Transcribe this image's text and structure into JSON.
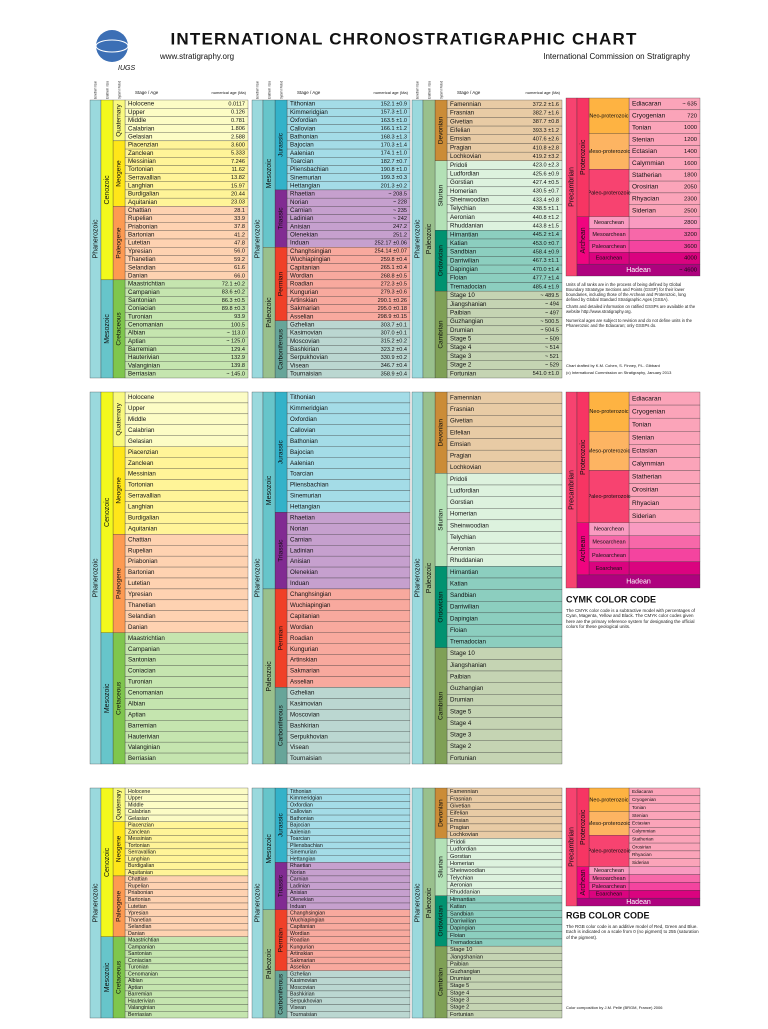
{
  "header": {
    "title": "INTERNATIONAL CHRONOSTRATIGRAPHIC CHART",
    "url": "www.stratigraphy.org",
    "org": "International Commission on Stratigraphy",
    "logo": "IUGS"
  },
  "columns": {
    "eon": "Eonothem / Eon",
    "era": "Erathem / Era",
    "period": "System / Period",
    "stage": "Stage / Age",
    "age": "numerical age (Ma)"
  },
  "panels": [
    {
      "eon": "Phanerozoic",
      "eon_color": "#9AD9DD",
      "eras": [
        {
          "name": "Cenozoic",
          "color": "#F2F91D",
          "periods": [
            {
              "name": "Quaternary",
              "color": "#F9F97F",
              "stages": [
                {
                  "name": "Holocene",
                  "age": "0.0117"
                },
                {
                  "name": "Upper",
                  "age": "0.126"
                },
                {
                  "name": "Middle",
                  "age": "0.781"
                },
                {
                  "name": "Calabrian",
                  "age": "1.806"
                },
                {
                  "name": "Gelasian",
                  "age": "2.588"
                }
              ]
            },
            {
              "name": "Neogene",
              "color": "#FFE619",
              "stages": [
                {
                  "name": "Piacenzian",
                  "age": "3.600"
                },
                {
                  "name": "Zanclean",
                  "age": "5.333"
                },
                {
                  "name": "Messinian",
                  "age": "7.246"
                },
                {
                  "name": "Tortonian",
                  "age": "11.62"
                },
                {
                  "name": "Serravallian",
                  "age": "13.82"
                },
                {
                  "name": "Langhian",
                  "age": "15.97"
                },
                {
                  "name": "Burdigalian",
                  "age": "20.44"
                },
                {
                  "name": "Aquitanian",
                  "age": "23.03"
                }
              ]
            },
            {
              "name": "Paleogene",
              "color": "#FD9A52",
              "stages": [
                {
                  "name": "Chattian",
                  "age": "28.1"
                },
                {
                  "name": "Rupelian",
                  "age": "33.9"
                },
                {
                  "name": "Priabonian",
                  "age": "37.8"
                },
                {
                  "name": "Bartonian",
                  "age": "41.2"
                },
                {
                  "name": "Lutetian",
                  "age": "47.8"
                },
                {
                  "name": "Ypresian",
                  "age": "56.0"
                },
                {
                  "name": "Thanetian",
                  "age": "59.2"
                },
                {
                  "name": "Selandian",
                  "age": "61.6"
                },
                {
                  "name": "Danian",
                  "age": "66.0"
                }
              ]
            }
          ]
        },
        {
          "name": "Mesozoic",
          "color": "#67C5CA",
          "periods": [
            {
              "name": "Cretaceous",
              "color": "#7FC64E",
              "stages": [
                {
                  "name": "Maastrichtian",
                  "age": "72.1 ±0.2"
                },
                {
                  "name": "Campanian",
                  "age": "83.6 ±0.2"
                },
                {
                  "name": "Santonian",
                  "age": "86.3 ±0.5"
                },
                {
                  "name": "Coniacian",
                  "age": "89.8 ±0.3"
                },
                {
                  "name": "Turonian",
                  "age": "93.9"
                },
                {
                  "name": "Cenomanian",
                  "age": "100.5"
                },
                {
                  "name": "Albian",
                  "age": "~ 113.0"
                },
                {
                  "name": "Aptian",
                  "age": "~ 125.0"
                },
                {
                  "name": "Barremian",
                  "age": "129.4"
                },
                {
                  "name": "Hauterivian",
                  "age": "132.9"
                },
                {
                  "name": "Valanginian",
                  "age": "139.8"
                },
                {
                  "name": "Berriasian",
                  "age": "~ 145.0"
                }
              ]
            }
          ]
        }
      ]
    },
    {
      "eon": "Phanerozoic",
      "eon_color": "#9AD9DD",
      "eras": [
        {
          "name": "Mesozoic",
          "color": "#67C5CA",
          "periods": [
            {
              "name": "Jurassic",
              "color": "#34B2C9",
              "stages": [
                {
                  "name": "Tithonian",
                  "age": "152.1 ±0.9"
                },
                {
                  "name": "Kimmeridgian",
                  "age": "157.3 ±1.0"
                },
                {
                  "name": "Oxfordian",
                  "age": "163.5 ±1.0"
                },
                {
                  "name": "Callovian",
                  "age": "166.1 ±1.2"
                },
                {
                  "name": "Bathonian",
                  "age": "168.3 ±1.3"
                },
                {
                  "name": "Bajocian",
                  "age": "170.3 ±1.4"
                },
                {
                  "name": "Aalenian",
                  "age": "174.1 ±1.0"
                },
                {
                  "name": "Toarcian",
                  "age": "182.7 ±0.7"
                },
                {
                  "name": "Pliensbachian",
                  "age": "190.8 ±1.0"
                },
                {
                  "name": "Sinemurian",
                  "age": "199.3 ±0.3"
                },
                {
                  "name": "Hettangian",
                  "age": "201.3 ±0.2"
                }
              ]
            },
            {
              "name": "Triassic",
              "color": "#812B92",
              "stages": [
                {
                  "name": "Rhaetian",
                  "age": "~ 208.5"
                },
                {
                  "name": "Norian",
                  "age": "~ 228"
                },
                {
                  "name": "Carnian",
                  "age": "~ 235"
                },
                {
                  "name": "Ladinian",
                  "age": "~ 242"
                },
                {
                  "name": "Anisian",
                  "age": "247.2"
                },
                {
                  "name": "Olenekian",
                  "age": "251.2"
                },
                {
                  "name": "Induan",
                  "age": "252.17 ±0.06"
                }
              ]
            }
          ]
        },
        {
          "name": "Paleozoic",
          "color": "#99C08D",
          "periods": [
            {
              "name": "Permian",
              "color": "#F04028",
              "stages": [
                {
                  "name": "Changhsingian",
                  "age": "254.14 ±0.07"
                },
                {
                  "name": "Wuchiapingian",
                  "age": "259.8 ±0.4"
                },
                {
                  "name": "Capitanian",
                  "age": "265.1 ±0.4"
                },
                {
                  "name": "Wordian",
                  "age": "268.8 ±0.5"
                },
                {
                  "name": "Roadian",
                  "age": "272.3 ±0.5"
                },
                {
                  "name": "Kungurian",
                  "age": "279.3 ±0.6"
                },
                {
                  "name": "Artinskian",
                  "age": "290.1 ±0.26"
                },
                {
                  "name": "Sakmarian",
                  "age": "295.0 ±0.18"
                },
                {
                  "name": "Asselian",
                  "age": "298.9 ±0.15"
                }
              ]
            },
            {
              "name": "Carboniferous",
              "color": "#67A599",
              "stages": [
                {
                  "name": "Gzhelian",
                  "age": "303.7 ±0.1"
                },
                {
                  "name": "Kasimovian",
                  "age": "307.0 ±0.1"
                },
                {
                  "name": "Moscovian",
                  "age": "315.2 ±0.2"
                },
                {
                  "name": "Bashkirian",
                  "age": "323.2 ±0.4"
                },
                {
                  "name": "Serpukhovian",
                  "age": "330.9 ±0.2"
                },
                {
                  "name": "Visean",
                  "age": "346.7 ±0.4"
                },
                {
                  "name": "Tournaisian",
                  "age": "358.9 ±0.4"
                }
              ]
            }
          ]
        }
      ]
    },
    {
      "eon": "Phanerozoic",
      "eon_color": "#9AD9DD",
      "eras": [
        {
          "name": "Paleozoic",
          "color": "#99C08D",
          "periods": [
            {
              "name": "Devonian",
              "color": "#CB8C37",
              "stages": [
                {
                  "name": "Famennian",
                  "age": "372.2 ±1.6"
                },
                {
                  "name": "Frasnian",
                  "age": "382.7 ±1.6"
                },
                {
                  "name": "Givetian",
                  "age": "387.7 ±0.8"
                },
                {
                  "name": "Eifelian",
                  "age": "393.3 ±1.2"
                },
                {
                  "name": "Emsian",
                  "age": "407.6 ±2.6"
                },
                {
                  "name": "Pragian",
                  "age": "410.8 ±2.8"
                },
                {
                  "name": "Lochkovian",
                  "age": "419.2 ±3.2"
                }
              ]
            },
            {
              "name": "Silurian",
              "color": "#B3E1B6",
              "stages": [
                {
                  "name": "Pridoli",
                  "age": "423.0 ±2.3"
                },
                {
                  "name": "Ludfordian",
                  "age": "425.6 ±0.9"
                },
                {
                  "name": "Gorstian",
                  "age": "427.4 ±0.5"
                },
                {
                  "name": "Homerian",
                  "age": "430.5 ±0.7"
                },
                {
                  "name": "Sheinwoodian",
                  "age": "433.4 ±0.8"
                },
                {
                  "name": "Telychian",
                  "age": "438.5 ±1.1"
                },
                {
                  "name": "Aeronian",
                  "age": "440.8 ±1.2"
                },
                {
                  "name": "Rhuddanian",
                  "age": "443.8 ±1.5"
                }
              ]
            },
            {
              "name": "Ordovician",
              "color": "#009270",
              "stages": [
                {
                  "name": "Hirnantian",
                  "age": "445.2 ±1.4"
                },
                {
                  "name": "Katian",
                  "age": "453.0 ±0.7"
                },
                {
                  "name": "Sandbian",
                  "age": "458.4 ±0.9"
                },
                {
                  "name": "Darriwilian",
                  "age": "467.3 ±1.1"
                },
                {
                  "name": "Dapingian",
                  "age": "470.0 ±1.4"
                },
                {
                  "name": "Floian",
                  "age": "477.7 ±1.4"
                },
                {
                  "name": "Tremadocian",
                  "age": "485.4 ±1.9"
                }
              ]
            },
            {
              "name": "Cambrian",
              "color": "#7FA056",
              "stages": [
                {
                  "name": "Stage 10",
                  "age": "~ 489.5"
                },
                {
                  "name": "Jiangshanian",
                  "age": "~ 494"
                },
                {
                  "name": "Paibian",
                  "age": "~ 497"
                },
                {
                  "name": "Guzhangian",
                  "age": "~ 500.5"
                },
                {
                  "name": "Drumian",
                  "age": "~ 504.5"
                },
                {
                  "name": "Stage 5",
                  "age": "~ 509"
                },
                {
                  "name": "Stage 4",
                  "age": "~ 514"
                },
                {
                  "name": "Stage 3",
                  "age": "~ 521"
                },
                {
                  "name": "Stage 2",
                  "age": "~ 529"
                },
                {
                  "name": "Fortunian",
                  "age": "541.0 ±1.0"
                }
              ]
            }
          ]
        }
      ]
    }
  ],
  "precambrian": {
    "name": "Precambrian",
    "color": "#F74370",
    "eons": [
      {
        "name": "Proterozoic",
        "color": "#F73563",
        "eras": [
          {
            "name": "Neo-proterozoic",
            "color": "#FEB342",
            "periods": [
              {
                "name": "Ediacaran",
                "age": "~ 635"
              },
              {
                "name": "Cryogenian",
                "age": "720"
              },
              {
                "name": "Tonian",
                "age": "1000"
              }
            ]
          },
          {
            "name": "Meso-proterozoic",
            "color": "#FDB462",
            "periods": [
              {
                "name": "Stenian",
                "age": "1200"
              },
              {
                "name": "Ectasian",
                "age": "1400"
              },
              {
                "name": "Calymmian",
                "age": "1600"
              }
            ]
          },
          {
            "name": "Paleo-proterozoic",
            "color": "#F74370",
            "periods": [
              {
                "name": "Statherian",
                "age": "1800"
              },
              {
                "name": "Orosirian",
                "age": "2050"
              },
              {
                "name": "Rhyacian",
                "age": "2300"
              },
              {
                "name": "Siderian",
                "age": "2500"
              }
            ]
          }
        ]
      },
      {
        "name": "Archean",
        "color": "#F0047F",
        "eras": [
          {
            "name": "Neoarchean",
            "color": "#F99BC1",
            "periods": [
              {
                "name": "",
                "age": "2800"
              }
            ]
          },
          {
            "name": "Mesoarchean",
            "color": "#F768A9",
            "periods": [
              {
                "name": "",
                "age": "3200"
              }
            ]
          },
          {
            "name": "Paleoarchean",
            "color": "#F4449F",
            "periods": [
              {
                "name": "",
                "age": "3600"
              }
            ]
          },
          {
            "name": "Eoarchean",
            "color": "#DA037F",
            "periods": [
              {
                "name": "",
                "age": "4000"
              }
            ]
          }
        ]
      }
    ],
    "hadean": {
      "name": "Hadean",
      "color": "#AE027E",
      "age": "~ 4600"
    }
  },
  "notes": [
    "Units of all ranks are in the process of being defined by Global Boundary Stratotype Sections and Points (GSSP) for their lower boundaries, including those of the Archean and Proterozoic, long defined by Global Standard Stratigraphic Ages (GSSA).",
    "Charts and detailed information on ratified GSSPs are available at the website http://www.stratigraphy.org.",
    "Numerical ages are subject to revision and do not define units in the Phanerozoic and the Ediacaran; only GSSPs do.",
    "Chart drafted by K.M. Cohen, S. Finney, P.L. Gibbard",
    "(c) International Commission on Stratigraphy, January 2013"
  ],
  "cymk": {
    "title": "CYMK COLOR CODE",
    "text": "The CMYK color code is a subtractive model with percentages of Cyan, Magenta, Yellow and Black. The CMYK color codes given here are the primary reference system for designating the official colors for these geological units."
  },
  "rgb": {
    "title": "RGB COLOR CODE",
    "text": "The RGB color code is an additive model of Red, Green and Blue. Each is indicated on a scale from 0 (no pigment) to 255 (saturation of the pigment)."
  },
  "credits": "Color composition by J.M. Pellé (BRGM, France) 2006"
}
